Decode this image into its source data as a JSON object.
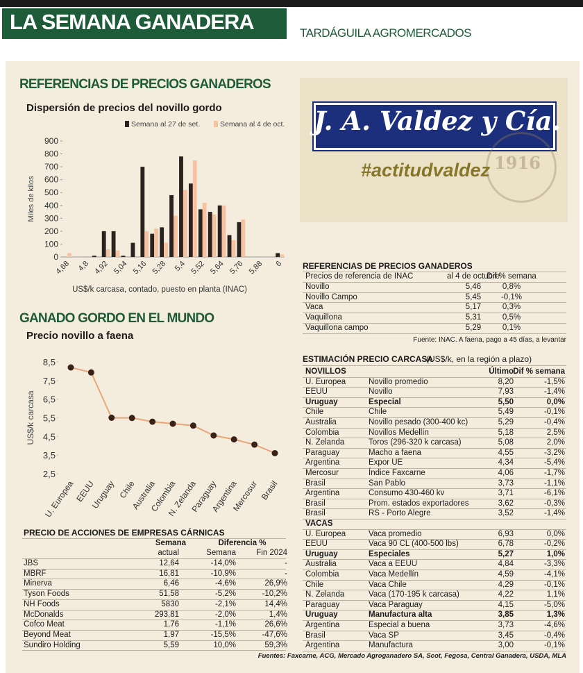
{
  "header": {
    "title": "LA SEMANA GANADERA",
    "publisher": "TARDÁGUILA AGROMERCADOS"
  },
  "section_title": "REFERENCIAS DE PRECIOS GANADEROS",
  "world_section_title": "GANADO GORDO EN EL MUNDO",
  "chart_data": [
    {
      "type": "bar",
      "title": "Dispersión de precios del novillo gordo",
      "y_label": "Miles de kilos",
      "x_label": "US$/k carcasa, contado, puesto en planta (INAC)",
      "categories": [
        "4,68",
        null,
        "4,8",
        null,
        "4,92",
        null,
        "5,04",
        null,
        "5,16",
        null,
        "5,28",
        null,
        "5,4",
        null,
        "5,52",
        null,
        "5,64",
        null,
        "5,76",
        null,
        "5,88",
        null,
        "6"
      ],
      "series": [
        {
          "name": "Semana al 27 de set.",
          "color": "#2b2220",
          "values": [
            0,
            0,
            0,
            10,
            200,
            200,
            10,
            110,
            700,
            180,
            230,
            480,
            780,
            570,
            370,
            350,
            400,
            170,
            270,
            0,
            0,
            0,
            30
          ]
        },
        {
          "name": "Semana al 4 de oct.",
          "color": "#f5c3a2",
          "values": [
            30,
            0,
            0,
            0,
            60,
            50,
            0,
            0,
            200,
            220,
            110,
            320,
            520,
            750,
            420,
            330,
            400,
            130,
            290,
            0,
            0,
            0,
            20
          ]
        }
      ],
      "ylim": [
        0,
        900
      ],
      "yticks": [
        0,
        100,
        200,
        300,
        400,
        500,
        600,
        700,
        800,
        900
      ],
      "legend": "top-right"
    },
    {
      "type": "line",
      "title": "Precio novillo a faena",
      "y_label": "US$/k carcasa",
      "categories": [
        "U. Europea",
        "EEUU",
        "Uruguay",
        "Chile",
        "Australia",
        "Colombia",
        "N. Zelanda",
        "Paraguay",
        "Argentina",
        "Mercosur",
        "Brasil"
      ],
      "values": [
        8.2,
        7.93,
        5.5,
        5.49,
        5.29,
        5.18,
        5.08,
        4.55,
        4.34,
        4.06,
        3.6
      ],
      "color": "#e9a678",
      "marker_color": "#3a2219",
      "ylim": [
        2.5,
        8.5
      ],
      "yticks": [
        {
          "value": 2.5,
          "label": "2,5"
        },
        {
          "value": 3.5,
          "label": "3,5"
        },
        {
          "value": 4.5,
          "label": "4,5"
        },
        {
          "value": 5.5,
          "label": "5,5"
        },
        {
          "value": 6.5,
          "label": "6,5"
        },
        {
          "value": 7.5,
          "label": "7,5"
        },
        {
          "value": 8.5,
          "label": "8,5"
        }
      ]
    }
  ],
  "ad": {
    "brand": "J. A. Valdez y Cía.",
    "hashtag": "#actitudvaldez",
    "year": "1916"
  },
  "references_table": {
    "title": "REFERENCIAS DE PRECIOS GANADEROS",
    "header": [
      "Precios de referencia de INAC",
      "al 4 de octubre",
      "Dif % semana"
    ],
    "rows": [
      [
        "Novillo",
        "5,46",
        "0,8%"
      ],
      [
        "Novillo Campo",
        "5,45",
        "-0,1%"
      ],
      [
        "Vaca",
        "5,17",
        "0,3%"
      ],
      [
        "Vaquillona",
        "5,31",
        "0,5%"
      ],
      [
        "Vaquillona campo",
        "5,29",
        "0,1%"
      ]
    ],
    "source": "Fuente: INAC. A faena, pago a 45 días, a levantar"
  },
  "carcass_table": {
    "title": "ESTIMACIÓN PRECIO CARCASA",
    "subtitle": "(US$/k, en la región a plazo)",
    "header": [
      "Último",
      "Dif % semana"
    ],
    "groups": [
      {
        "name": "NOVILLOS",
        "bold_rows": [
          2
        ],
        "rows": [
          [
            "U. Europea",
            "Novillo promedio",
            "8,20",
            "-1,5%"
          ],
          [
            "EEUU",
            "Novillo",
            "7,93",
            "-1,4%"
          ],
          [
            "Uruguay",
            "Especial",
            "5,50",
            "0,0%"
          ],
          [
            "Chile",
            "Chile",
            "5,49",
            "-0,1%"
          ],
          [
            "Australia",
            "Novillo pesado (300-400 kc)",
            "5,29",
            "-0,4%"
          ],
          [
            "Colombia",
            "Novillos Medellín",
            "5,18",
            "2,5%"
          ],
          [
            "N. Zelanda",
            "Toros (296-320 k carcasa)",
            "5,08",
            "2,0%"
          ],
          [
            "Paraguay",
            "Macho a faena",
            "4,55",
            "-3,2%"
          ],
          [
            "Argentina",
            "Expor UE",
            "4,34",
            "-5,4%"
          ],
          [
            "Mercosur",
            "Índice Faxcarne",
            "4,06",
            "-1,7%"
          ],
          [
            "Brasil",
            "San Pablo",
            "3,73",
            "-1,1%"
          ],
          [
            "Argentina",
            "Consumo 430-460 kv",
            "3,71",
            "-6,1%"
          ],
          [
            "Brasil",
            "Prom. estados exportadores",
            "3,62",
            "-0,3%"
          ],
          [
            "Brasil",
            "RS - Porto Alegre",
            "3,52",
            "-1,4%"
          ]
        ]
      },
      {
        "name": "VACAS",
        "bold_rows": [
          2,
          8
        ],
        "rows": [
          [
            "U. Europea",
            "Vaca promedio",
            "6,93",
            "0,0%"
          ],
          [
            "EEUU",
            "Vaca 90 CL (400-500 lbs)",
            "6,78",
            "-0,2%"
          ],
          [
            "Uruguay",
            "Especiales",
            "5,27",
            "1,0%"
          ],
          [
            "Australia",
            "Vaca a EEUU",
            "4,84",
            "-3,3%"
          ],
          [
            "Colombia",
            "Vaca Medellín",
            "4,59",
            "-4,1%"
          ],
          [
            "Chile",
            "Vaca Chile",
            "4,29",
            "-0,1%"
          ],
          [
            "N. Zelanda",
            "Vaca (170-195 k carcasa)",
            "4,22",
            "1,1%"
          ],
          [
            "Paraguay",
            "Vaca Paraguay",
            "4,15",
            "-5,0%"
          ],
          [
            "Uruguay",
            "Manufactura alta",
            "3,85",
            "1,3%"
          ],
          [
            "Argentina",
            "Especial a buena",
            "3,73",
            "-4,6%"
          ],
          [
            "Brasil",
            "Vaca SP",
            "3,45",
            "-0,4%"
          ],
          [
            "Argentina",
            "Manufactura",
            "3,00",
            "-0,1%"
          ]
        ]
      }
    ],
    "source": "Fuentes: Faxcarne, ACG, Mercado Agroganadero SA, Scot, Fegosa, Central Ganadera, USDA, MLA"
  },
  "stocks_table": {
    "title": "PRECIO DE ACCIONES DE EMPRESAS CÁRNICAS",
    "header_top": [
      "Semana",
      "Diferencia %"
    ],
    "header": [
      "actual",
      "Semana",
      "Fin 2024"
    ],
    "rows": [
      [
        "JBS",
        "12,64",
        "-14,0%",
        "-"
      ],
      [
        "MBRF",
        "16,81",
        "-10,9%",
        "-"
      ],
      [
        "Minerva",
        "6,46",
        "-4,6%",
        "26,9%"
      ],
      [
        "Tyson Foods",
        "51,58",
        "-5,2%",
        "-10,2%"
      ],
      [
        "NH Foods",
        "5830",
        "-2,1%",
        "14,4%"
      ],
      [
        "McDonalds",
        "293,81",
        "-2,0%",
        "1,4%"
      ],
      [
        "Cofco Meat",
        "1,76",
        "-1,1%",
        "26,6%"
      ],
      [
        "Beyond Meat",
        "1,97",
        "-15,5%",
        "-47,6%"
      ],
      [
        "Sundiro Holding",
        "5,59",
        "10,0%",
        "59,3%"
      ]
    ]
  }
}
